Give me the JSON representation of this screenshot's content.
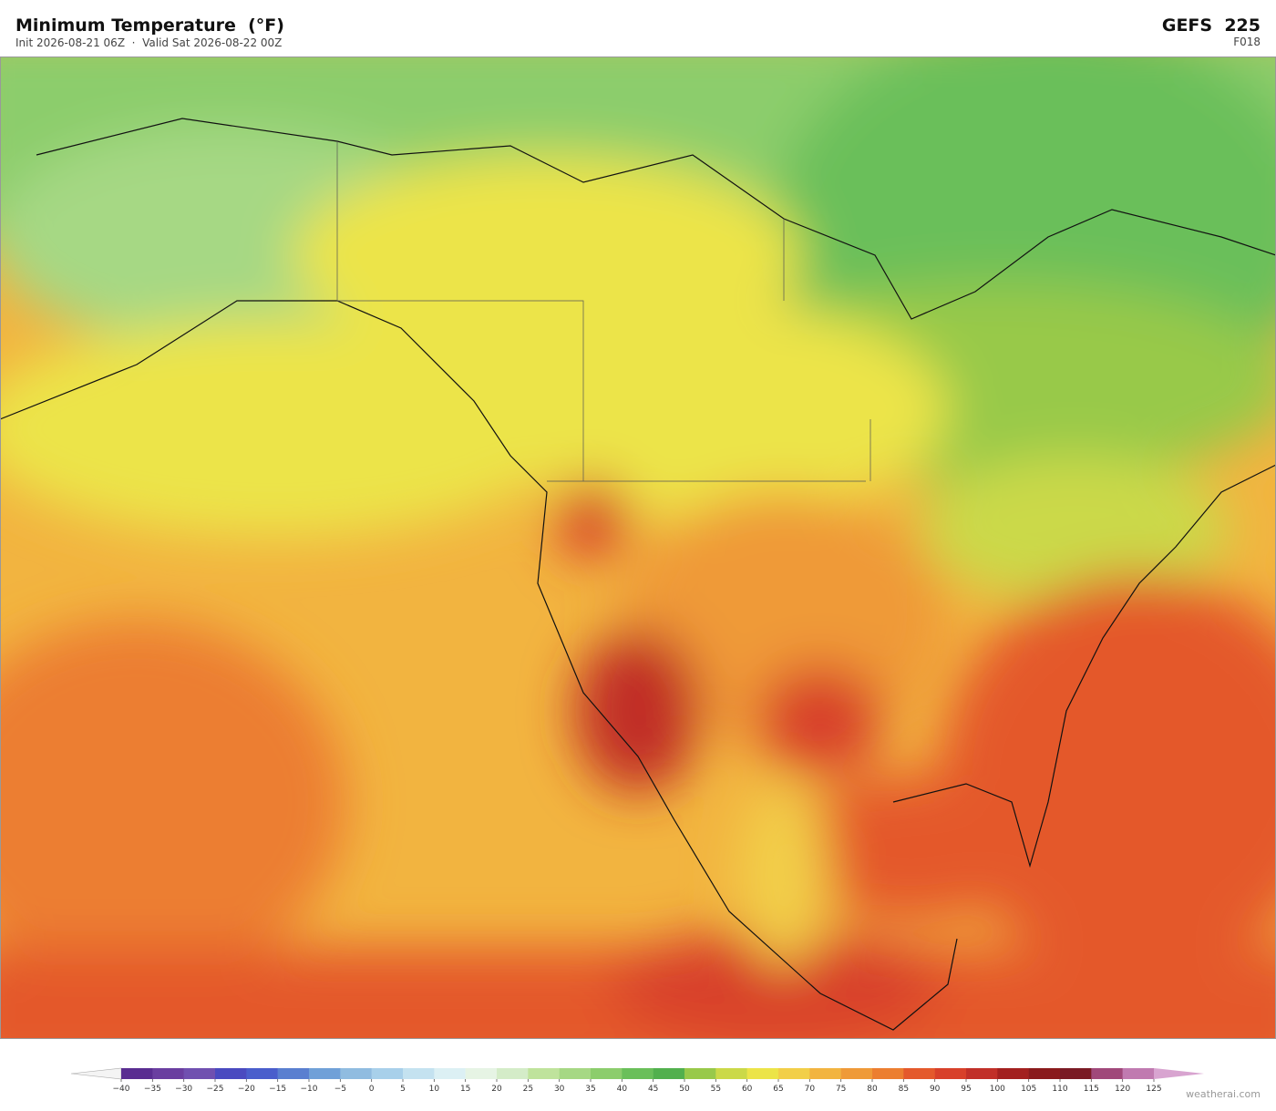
{
  "header": {
    "title": "Minimum Temperature  (°F)",
    "subtitle": "Init 2026-08-21 06Z  ·  Valid Sat 2026-08-22 00Z",
    "model": "GEFS  225",
    "forecast_hour": "F018"
  },
  "colorbar": {
    "ticks": [
      {
        "value": -40,
        "label": "−40"
      },
      {
        "value": -35,
        "label": "−35"
      },
      {
        "value": -30,
        "label": "−30"
      },
      {
        "value": -25,
        "label": "−25"
      },
      {
        "value": -20,
        "label": "−20"
      },
      {
        "value": -15,
        "label": "−15"
      },
      {
        "value": -10,
        "label": "−10"
      },
      {
        "value": -5,
        "label": "−5"
      },
      0,
      5,
      10,
      15,
      20,
      25,
      30,
      35,
      40,
      45,
      50,
      55,
      60,
      65,
      70,
      75,
      80,
      85,
      90,
      95,
      100,
      105,
      110,
      115,
      120,
      125
    ],
    "colors": [
      "#5a2d91",
      "#6a3ea0",
      "#7050b0",
      "#4a4ac0",
      "#4a5ecc",
      "#5a7fd0",
      "#70a0d8",
      "#90bce0",
      "#a8d0ea",
      "#c4e2f0",
      "#dcf0f4",
      "#e6f4e4",
      "#d4ecc8",
      "#bfe39c",
      "#a6d884",
      "#8ccd6c",
      "#6abf5a",
      "#52b04e",
      "#98c94a",
      "#cbd948",
      "#ece448",
      "#f2cf48",
      "#f2b440",
      "#ef9a38",
      "#ec7e30",
      "#e4592c",
      "#d8402a",
      "#c12f28",
      "#a3201f",
      "#8a1a1c",
      "#7a1a24",
      "#a0487a",
      "#c07ab0"
    ],
    "under_color": "#f4f4f4",
    "over_color": "#d8a4d0"
  },
  "credit": "weatherai.com"
}
